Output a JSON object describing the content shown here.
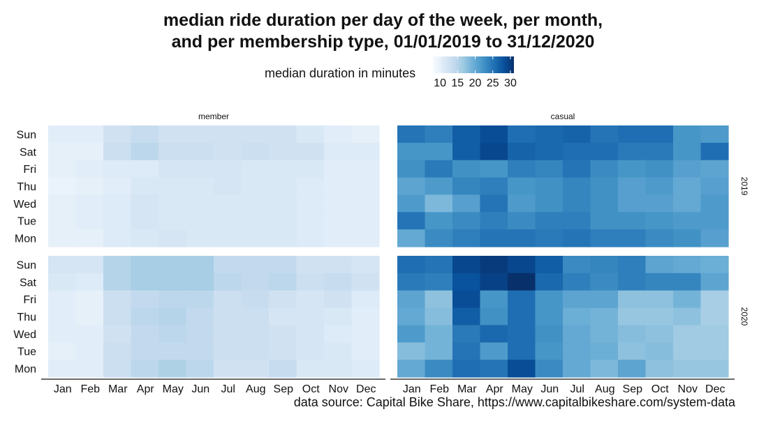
{
  "title_lines": [
    "median ride duration per day of the week, per month,",
    "and per membership type, 01/01/2019 to 31/12/2020"
  ],
  "legend": {
    "title": "median duration in minutes",
    "ticks": [
      "10",
      "15",
      "20",
      "25",
      "30"
    ],
    "range": [
      8,
      31
    ],
    "color_low": "#f7fbff",
    "color_high": "#08306b"
  },
  "source": "data source: Capital Bike Share, https://www.capitalbikeshare.com/system-data",
  "chart_data": {
    "type": "heatmap",
    "x_categories": [
      "Jan",
      "Feb",
      "Mar",
      "Apr",
      "May",
      "Jun",
      "Jul",
      "Aug",
      "Sep",
      "Oct",
      "Nov",
      "Dec"
    ],
    "y_categories": [
      "Sun",
      "Sat",
      "Fri",
      "Thu",
      "Wed",
      "Tue",
      "Mon"
    ],
    "facet_columns": [
      "member",
      "casual"
    ],
    "facet_rows": [
      "2019",
      "2020"
    ],
    "value_range": [
      8,
      31
    ],
    "color_scale": "Blues",
    "panels": [
      {
        "membership": "member",
        "year": "2019",
        "values": [
          [
            10.5,
            10.5,
            12.5,
            13.5,
            12.5,
            12.5,
            12.5,
            12.5,
            12.5,
            11.5,
            10.5,
            10
          ],
          [
            10,
            10,
            13,
            14.5,
            13,
            13,
            12.5,
            13,
            12.5,
            12.5,
            11,
            11
          ],
          [
            10,
            10.5,
            11,
            11,
            12,
            12,
            12,
            11.5,
            11.5,
            11.5,
            10.5,
            10.5
          ],
          [
            9.5,
            10,
            10.5,
            11.5,
            11.5,
            11.5,
            12,
            11.5,
            11.5,
            11,
            10.5,
            10.5
          ],
          [
            10,
            10.5,
            11,
            12,
            11.5,
            11.5,
            11.5,
            11.5,
            11.5,
            11,
            10.5,
            10.5
          ],
          [
            10,
            10.5,
            11,
            12,
            11.5,
            11.5,
            11.5,
            11.5,
            11.5,
            11,
            10.5,
            10.5
          ],
          [
            10,
            10,
            11,
            11.5,
            12,
            11.5,
            11.5,
            11.5,
            11.5,
            11,
            10.5,
            10.5
          ]
        ]
      },
      {
        "membership": "casual",
        "year": "2019",
        "values": [
          [
            25,
            24,
            27,
            28.5,
            25.5,
            26,
            26.5,
            25,
            25.5,
            25.5,
            22,
            21.5
          ],
          [
            22,
            22,
            27,
            29,
            26.5,
            26,
            25.5,
            25.5,
            24.5,
            24.5,
            22,
            25.5
          ],
          [
            22.5,
            24.5,
            22.5,
            22,
            24,
            23.5,
            25,
            23,
            22,
            22.5,
            21,
            20.5
          ],
          [
            20.5,
            21.5,
            23.5,
            24,
            22,
            22.5,
            23.5,
            22.5,
            21,
            21.5,
            20,
            21
          ],
          [
            21.5,
            18.5,
            21,
            25,
            21.5,
            22.5,
            23.5,
            22.5,
            21,
            21,
            20,
            21.5
          ],
          [
            25,
            22,
            23,
            24,
            23,
            24,
            24,
            22.5,
            22.5,
            22,
            21.5,
            21.5
          ],
          [
            20,
            23,
            24,
            25,
            25,
            24.5,
            25,
            24,
            24,
            23,
            22.5,
            21
          ]
        ]
      },
      {
        "membership": "member",
        "year": "2020",
        "values": [
          [
            12,
            12,
            15,
            16,
            16,
            16,
            14,
            14,
            14,
            12.5,
            12.5,
            12
          ],
          [
            11.5,
            11,
            15,
            16,
            16,
            16,
            14.5,
            14,
            14.5,
            13,
            13.5,
            12.5
          ],
          [
            10.5,
            10,
            13,
            14,
            14.5,
            14.5,
            13,
            13.5,
            12.5,
            12,
            12.5,
            11
          ],
          [
            10.5,
            10,
            13,
            14.5,
            15,
            14,
            13,
            13,
            12,
            12,
            11.5,
            10.5
          ],
          [
            10.5,
            10.5,
            12.5,
            14,
            14.5,
            14,
            13,
            13,
            12.5,
            12,
            11,
            10.5
          ],
          [
            10,
            10.5,
            13,
            14,
            14,
            14,
            13,
            13,
            12.5,
            12,
            11.5,
            10.5
          ],
          [
            10.5,
            10.5,
            13,
            14.5,
            15.5,
            14.5,
            12.5,
            12.5,
            13.5,
            11.5,
            11.5,
            11
          ]
        ]
      },
      {
        "membership": "casual",
        "year": "2020",
        "values": [
          [
            25.5,
            25,
            29,
            30,
            29,
            27,
            23,
            23.5,
            24,
            20.5,
            20,
            19.5
          ],
          [
            24.5,
            24,
            28,
            29.5,
            31,
            26,
            24,
            23,
            24,
            23.5,
            23.5,
            20.5
          ],
          [
            20.5,
            17.5,
            28.5,
            22,
            25.5,
            22,
            20.5,
            20.5,
            17.5,
            17.5,
            19,
            16
          ],
          [
            20,
            18,
            27,
            22.5,
            25.5,
            22,
            19.5,
            19,
            17,
            17,
            17.5,
            16
          ],
          [
            21.5,
            19,
            24.5,
            26,
            25.5,
            22.5,
            20,
            19,
            18,
            17.5,
            16.5,
            16.5
          ],
          [
            18,
            19,
            25,
            21.5,
            25.5,
            22,
            20,
            19.5,
            17.5,
            18,
            16.5,
            16.5
          ],
          [
            20,
            23,
            25.5,
            25,
            28.5,
            23,
            20,
            18.5,
            20.5,
            17.5,
            17,
            17
          ]
        ]
      }
    ]
  }
}
